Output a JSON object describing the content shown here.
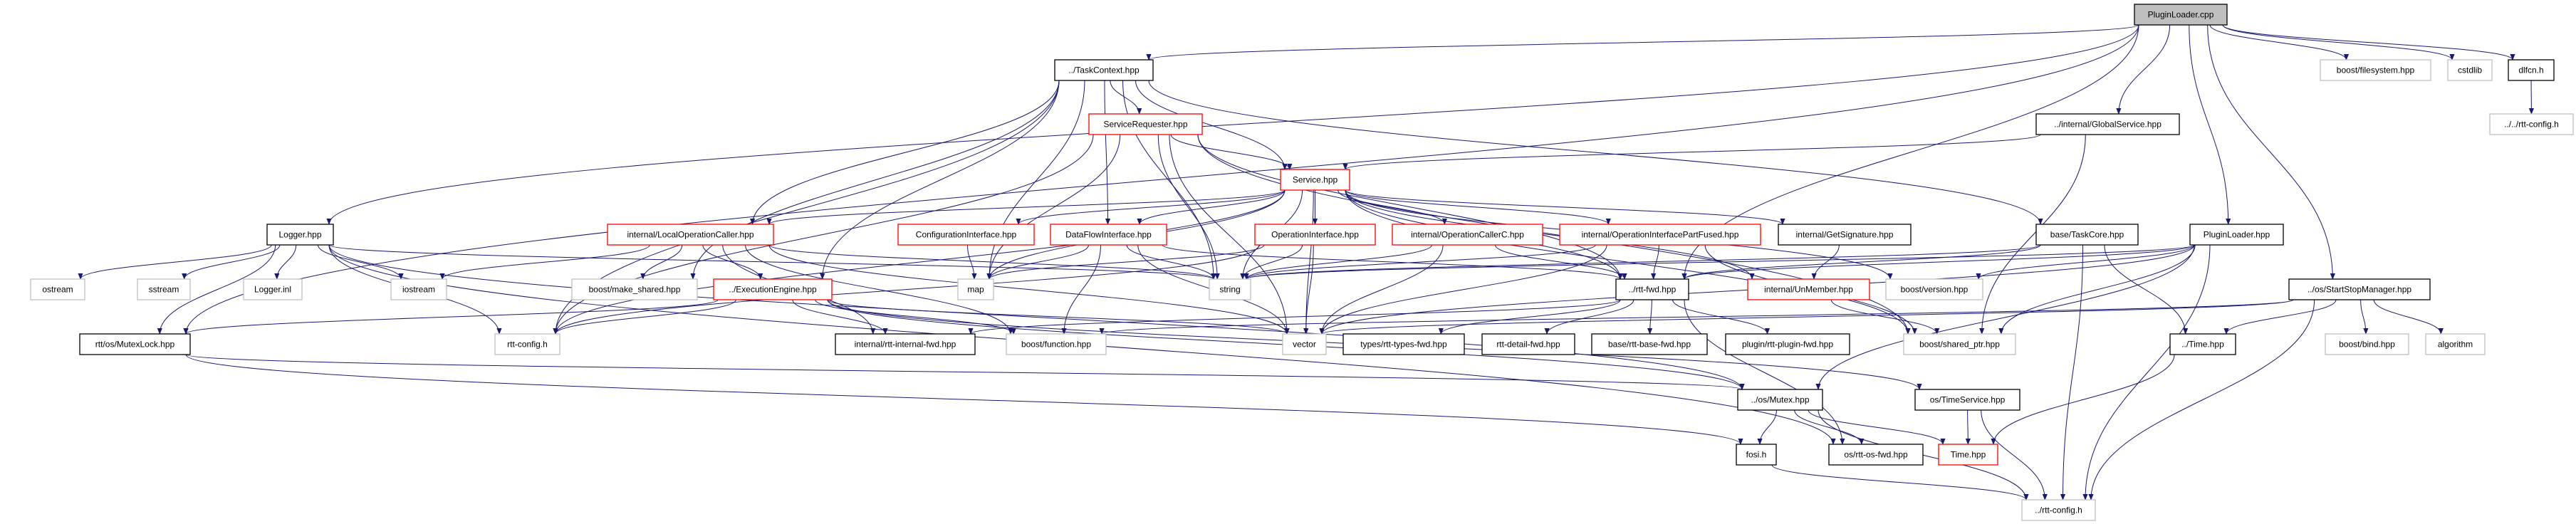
{
  "graph": {
    "edge_color": "#191970",
    "styles": {
      "root": {
        "fill": "#bfbfbf",
        "stroke": "#000000"
      },
      "documented": {
        "fill": "#ffffff",
        "stroke": "#000000"
      },
      "truncated": {
        "fill": "#ffffff",
        "stroke": "#ff0000"
      },
      "external": {
        "fill": "#ffffff",
        "stroke": "#bfbfbf"
      }
    },
    "nodes": [
      {
        "id": "root",
        "label": "PluginLoader.cpp",
        "style": "root"
      },
      {
        "id": "taskcontext",
        "label": "../TaskContext.hpp",
        "style": "documented"
      },
      {
        "id": "bfs",
        "label": "boost/filesystem.hpp",
        "style": "external"
      },
      {
        "id": "cstdlib",
        "label": "cstdlib",
        "style": "external"
      },
      {
        "id": "dlfcn",
        "label": "dlfcn.h",
        "style": "documented"
      },
      {
        "id": "servicerequester",
        "label": "ServiceRequester.hpp",
        "style": "truncated"
      },
      {
        "id": "globalservice",
        "label": "../internal/GlobalService.hpp",
        "style": "documented"
      },
      {
        "id": "rttconfig2",
        "label": "../../rtt-config.h",
        "style": "external"
      },
      {
        "id": "service",
        "label": "Service.hpp",
        "style": "truncated"
      },
      {
        "id": "logger",
        "label": "Logger.hpp",
        "style": "documented"
      },
      {
        "id": "localopcaller",
        "label": "internal/LocalOperationCaller.hpp",
        "style": "truncated"
      },
      {
        "id": "configif",
        "label": "ConfigurationInterface.hpp",
        "style": "truncated"
      },
      {
        "id": "dataflowif",
        "label": "DataFlowInterface.hpp",
        "style": "truncated"
      },
      {
        "id": "operationif",
        "label": "OperationInterface.hpp",
        "style": "truncated"
      },
      {
        "id": "opcallerc",
        "label": "internal/OperationCallerC.hpp",
        "style": "truncated"
      },
      {
        "id": "opifpartfused",
        "label": "internal/OperationInterfacePartFused.hpp",
        "style": "truncated"
      },
      {
        "id": "getsignature",
        "label": "internal/GetSignature.hpp",
        "style": "documented"
      },
      {
        "id": "taskcore",
        "label": "base/TaskCore.hpp",
        "style": "documented"
      },
      {
        "id": "pluginloaderhpp",
        "label": "PluginLoader.hpp",
        "style": "documented"
      },
      {
        "id": "ostream",
        "label": "ostream",
        "style": "external"
      },
      {
        "id": "sstream",
        "label": "sstream",
        "style": "external"
      },
      {
        "id": "loggerinl",
        "label": "Logger.inl",
        "style": "external"
      },
      {
        "id": "iostream",
        "label": "iostream",
        "style": "external"
      },
      {
        "id": "makeshared",
        "label": "boost/make_shared.hpp",
        "style": "external"
      },
      {
        "id": "execengine",
        "label": "../ExecutionEngine.hpp",
        "style": "truncated"
      },
      {
        "id": "map",
        "label": "map",
        "style": "external"
      },
      {
        "id": "string",
        "label": "string",
        "style": "external"
      },
      {
        "id": "rttfwd",
        "label": "../rtt-fwd.hpp",
        "style": "documented"
      },
      {
        "id": "unmember",
        "label": "internal/UnMember.hpp",
        "style": "truncated"
      },
      {
        "id": "bversion",
        "label": "boost/version.hpp",
        "style": "external"
      },
      {
        "id": "startstop",
        "label": "../os/StartStopManager.hpp",
        "style": "documented"
      },
      {
        "id": "mutexlock",
        "label": "rtt/os/MutexLock.hpp",
        "style": "documented"
      },
      {
        "id": "rttconfig",
        "label": "rtt-config.h",
        "style": "external"
      },
      {
        "id": "internalfwd",
        "label": "internal/rtt-internal-fwd.hpp",
        "style": "documented"
      },
      {
        "id": "bfunction",
        "label": "boost/function.hpp",
        "style": "external"
      },
      {
        "id": "vector",
        "label": "vector",
        "style": "external"
      },
      {
        "id": "typesfwd",
        "label": "types/rtt-types-fwd.hpp",
        "style": "documented"
      },
      {
        "id": "detailfwd",
        "label": "rtt-detail-fwd.hpp",
        "style": "documented"
      },
      {
        "id": "basefwd",
        "label": "base/rtt-base-fwd.hpp",
        "style": "documented"
      },
      {
        "id": "pluginfwd",
        "label": "plugin/rtt-plugin-fwd.hpp",
        "style": "documented"
      },
      {
        "id": "sharedptr",
        "label": "boost/shared_ptr.hpp",
        "style": "external"
      },
      {
        "id": "timehppup",
        "label": "../Time.hpp",
        "style": "documented"
      },
      {
        "id": "bbind",
        "label": "boost/bind.hpp",
        "style": "external"
      },
      {
        "id": "algorithm",
        "label": "algorithm",
        "style": "external"
      },
      {
        "id": "mutex",
        "label": "../os/Mutex.hpp",
        "style": "documented"
      },
      {
        "id": "timeservice",
        "label": "os/TimeService.hpp",
        "style": "documented"
      },
      {
        "id": "fosi",
        "label": "fosi.h",
        "style": "documented"
      },
      {
        "id": "osfwd",
        "label": "os/rtt-os-fwd.hpp",
        "style": "documented"
      },
      {
        "id": "timehpp",
        "label": "Time.hpp",
        "style": "truncated"
      },
      {
        "id": "rttconfig1",
        "label": "../rtt-config.h",
        "style": "external"
      }
    ],
    "edges": [
      [
        "root",
        "taskcontext"
      ],
      [
        "root",
        "mutexlock"
      ],
      [
        "root",
        "logger"
      ],
      [
        "root",
        "globalservice"
      ],
      [
        "root",
        "pluginloaderhpp"
      ],
      [
        "root",
        "startstop"
      ],
      [
        "root",
        "bfs"
      ],
      [
        "root",
        "cstdlib"
      ],
      [
        "root",
        "dlfcn"
      ],
      [
        "root",
        "rttfwd"
      ],
      [
        "dlfcn",
        "rttconfig2"
      ],
      [
        "taskcontext",
        "servicerequester"
      ],
      [
        "taskcontext",
        "service"
      ],
      [
        "taskcontext",
        "dataflowif"
      ],
      [
        "taskcontext",
        "string"
      ],
      [
        "taskcontext",
        "map"
      ],
      [
        "taskcontext",
        "rttconfig"
      ],
      [
        "taskcontext",
        "execengine"
      ],
      [
        "taskcontext",
        "makeshared"
      ],
      [
        "taskcontext",
        "taskcore"
      ],
      [
        "taskcontext",
        "localopcaller"
      ],
      [
        "servicerequester",
        "service"
      ],
      [
        "servicerequester",
        "string"
      ],
      [
        "servicerequester",
        "map"
      ],
      [
        "servicerequester",
        "vector"
      ],
      [
        "servicerequester",
        "rttconfig"
      ],
      [
        "servicerequester",
        "rttfwd"
      ],
      [
        "servicerequester",
        "sharedptr"
      ],
      [
        "globalservice",
        "service"
      ],
      [
        "globalservice",
        "sharedptr"
      ],
      [
        "service",
        "configif"
      ],
      [
        "service",
        "dataflowif"
      ],
      [
        "service",
        "operationif"
      ],
      [
        "service",
        "opcallerc"
      ],
      [
        "service",
        "opifpartfused"
      ],
      [
        "service",
        "getsignature"
      ],
      [
        "service",
        "localopcaller"
      ],
      [
        "service",
        "rttconfig"
      ],
      [
        "service",
        "string"
      ],
      [
        "service",
        "map"
      ],
      [
        "service",
        "vector"
      ],
      [
        "service",
        "sharedptr"
      ],
      [
        "service",
        "rttfwd"
      ],
      [
        "service",
        "unmember"
      ],
      [
        "service",
        "bversion"
      ],
      [
        "logger",
        "ostream"
      ],
      [
        "logger",
        "sstream"
      ],
      [
        "logger",
        "loggerinl"
      ],
      [
        "logger",
        "iostream"
      ],
      [
        "logger",
        "mutexlock"
      ],
      [
        "logger",
        "rttconfig"
      ],
      [
        "logger",
        "string"
      ],
      [
        "logger",
        "mutex"
      ],
      [
        "logger",
        "osfwd"
      ],
      [
        "localopcaller",
        "iostream"
      ],
      [
        "localopcaller",
        "makeshared"
      ],
      [
        "localopcaller",
        "execengine"
      ],
      [
        "localopcaller",
        "string"
      ],
      [
        "localopcaller",
        "vector"
      ],
      [
        "localopcaller",
        "bfunction"
      ],
      [
        "localopcaller",
        "internalfwd"
      ],
      [
        "execengine",
        "rttconfig"
      ],
      [
        "execengine",
        "mutexlock"
      ],
      [
        "execengine",
        "internalfwd"
      ],
      [
        "execengine",
        "bfunction"
      ],
      [
        "execengine",
        "vector"
      ],
      [
        "execengine",
        "mutex"
      ],
      [
        "execengine",
        "timeservice"
      ],
      [
        "configif",
        "map"
      ],
      [
        "dataflowif",
        "map"
      ],
      [
        "dataflowif",
        "string"
      ],
      [
        "dataflowif",
        "vector"
      ],
      [
        "dataflowif",
        "bfunction"
      ],
      [
        "dataflowif",
        "rttfwd"
      ],
      [
        "operationif",
        "map"
      ],
      [
        "operationif",
        "string"
      ],
      [
        "operationif",
        "vector"
      ],
      [
        "operationif",
        "rttconfig"
      ],
      [
        "opcallerc",
        "string"
      ],
      [
        "opcallerc",
        "rttfwd"
      ],
      [
        "opcallerc",
        "vector"
      ],
      [
        "opifpartfused",
        "string"
      ],
      [
        "opifpartfused",
        "rttfwd"
      ],
      [
        "opifpartfused",
        "vector"
      ],
      [
        "opifpartfused",
        "sharedptr"
      ],
      [
        "getsignature",
        "unmember"
      ],
      [
        "unmember",
        "sharedptr"
      ],
      [
        "taskcore",
        "string"
      ],
      [
        "taskcore",
        "rttfwd"
      ],
      [
        "taskcore",
        "timehppup"
      ],
      [
        "taskcore",
        "rttconfig1"
      ],
      [
        "pluginloaderhpp",
        "string"
      ],
      [
        "pluginloaderhpp",
        "vector"
      ],
      [
        "pluginloaderhpp",
        "sharedptr"
      ],
      [
        "pluginloaderhpp",
        "mutex"
      ],
      [
        "pluginloaderhpp",
        "rttconfig1"
      ],
      [
        "pluginloaderhpp",
        "rttfwd"
      ],
      [
        "pluginloaderhpp",
        "bversion"
      ],
      [
        "rttfwd",
        "typesfwd"
      ],
      [
        "rttfwd",
        "detailfwd"
      ],
      [
        "rttfwd",
        "basefwd"
      ],
      [
        "rttfwd",
        "pluginfwd"
      ],
      [
        "rttfwd",
        "internalfwd"
      ],
      [
        "rttfwd",
        "osfwd"
      ],
      [
        "startstop",
        "timehppup"
      ],
      [
        "startstop",
        "bbind"
      ],
      [
        "startstop",
        "algorithm"
      ],
      [
        "startstop",
        "rttconfig1"
      ],
      [
        "startstop",
        "vector"
      ],
      [
        "startstop",
        "bfunction"
      ],
      [
        "timehppup",
        "timehpp"
      ],
      [
        "mutexlock",
        "mutex"
      ],
      [
        "mutexlock",
        "fosi"
      ],
      [
        "mutex",
        "fosi"
      ],
      [
        "mutex",
        "osfwd"
      ],
      [
        "mutex",
        "timehpp"
      ],
      [
        "mutex",
        "rttconfig1"
      ],
      [
        "timeservice",
        "timehpp"
      ],
      [
        "timeservice",
        "rttconfig1"
      ],
      [
        "fosi",
        "rttconfig1"
      ]
    ]
  }
}
